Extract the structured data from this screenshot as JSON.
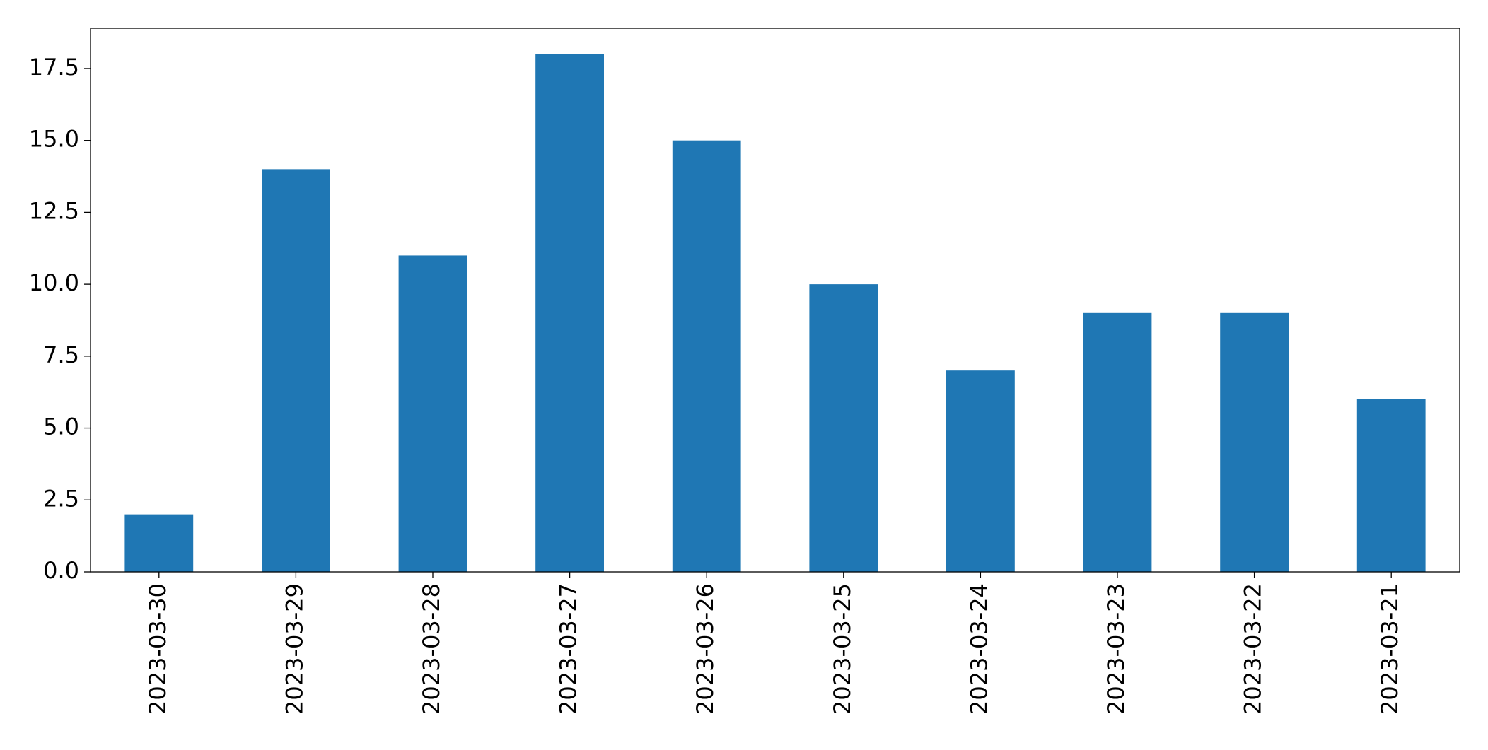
{
  "chart_data": {
    "type": "bar",
    "categories": [
      "2023-03-30",
      "2023-03-29",
      "2023-03-28",
      "2023-03-27",
      "2023-03-26",
      "2023-03-25",
      "2023-03-24",
      "2023-03-23",
      "2023-03-22",
      "2023-03-21"
    ],
    "values": [
      2,
      14,
      11,
      18,
      15,
      10,
      7,
      9,
      9,
      6
    ],
    "color": "#1f77b4",
    "ylim": [
      0,
      18.9
    ],
    "yticks": [
      {
        "value": 0,
        "label": "0.0"
      },
      2.5,
      {
        "value": 5,
        "label": "5.0"
      },
      7.5,
      {
        "value": 10,
        "label": "10.0"
      },
      12.5,
      {
        "value": 15,
        "label": "15.0"
      },
      17.5
    ],
    "grid": false
  }
}
